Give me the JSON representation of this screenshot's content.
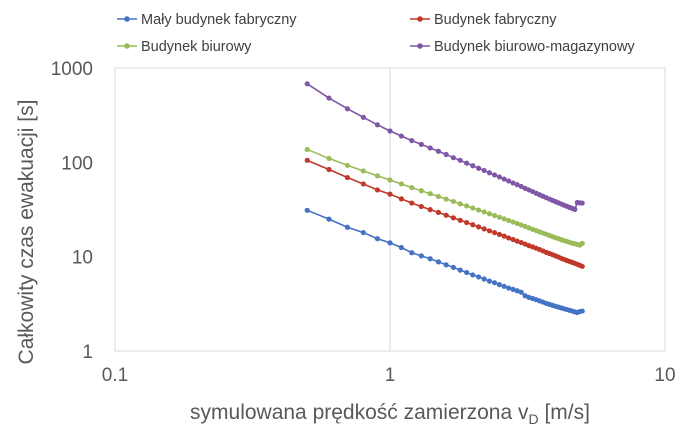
{
  "chart_data": {
    "type": "line",
    "title": "",
    "xlabel": "symulowana prędkość zamierzona v",
    "xlabel_subscript": "D",
    "xlabel_unit": " [m/s]",
    "ylabel": "Całkowity czas ewakuacji [s]",
    "x_scale": "log",
    "y_scale": "log",
    "xlim": [
      0.1,
      10
    ],
    "ylim": [
      1,
      1000
    ],
    "x_ticks": [
      "0.1",
      "1",
      "10"
    ],
    "y_ticks": [
      "1",
      "10",
      "100",
      "1000"
    ],
    "grid": "vertical major",
    "legend_position": "top",
    "x": [
      0.5,
      0.6,
      0.7,
      0.8,
      0.9,
      1.0,
      1.1,
      1.2,
      1.3,
      1.4,
      1.5,
      1.6,
      1.7,
      1.8,
      1.9,
      2.0,
      2.1,
      2.2,
      2.3,
      2.4,
      2.5,
      2.6,
      2.7,
      2.8,
      2.9,
      3.0,
      3.1,
      3.2,
      3.3,
      3.4,
      3.5,
      3.6,
      3.7,
      3.8,
      3.9,
      4.0,
      4.1,
      4.2,
      4.3,
      4.4,
      4.5,
      4.6,
      4.7,
      4.8,
      4.9,
      5.0
    ],
    "series": [
      {
        "name": "Mały budynek fabryczny",
        "color": "#4472C4",
        "values": [
          31,
          25,
          20.5,
          18,
          15.5,
          14,
          12.5,
          11,
          10.2,
          9.5,
          8.8,
          8.2,
          7.7,
          7.2,
          6.8,
          6.4,
          6.1,
          5.8,
          5.5,
          5.3,
          5.05,
          4.85,
          4.65,
          4.5,
          4.35,
          4.2,
          3.85,
          3.7,
          3.6,
          3.5,
          3.4,
          3.3,
          3.2,
          3.12,
          3.05,
          2.98,
          2.92,
          2.86,
          2.8,
          2.75,
          2.7,
          2.65,
          2.6,
          2.56,
          2.62,
          2.65
        ]
      },
      {
        "name": "Budynek fabryczny",
        "color": "#C0392B",
        "values": [
          105,
          84,
          69,
          59,
          51,
          46,
          41,
          37,
          34,
          31.5,
          29.5,
          27.5,
          25.8,
          24.3,
          23,
          21.8,
          20.7,
          19.7,
          18.8,
          18,
          17.2,
          16.5,
          15.8,
          15.2,
          14.6,
          14.1,
          13.6,
          13.1,
          12.7,
          12.3,
          11.9,
          11.5,
          11.1,
          10.8,
          10.5,
          10.2,
          9.9,
          9.6,
          9.35,
          9.1,
          8.9,
          8.7,
          8.5,
          8.3,
          8.1,
          7.9
        ]
      },
      {
        "name": "Budynek biurowy",
        "color": "#9BBB59",
        "values": [
          137,
          110,
          93,
          81,
          72,
          65,
          59,
          54,
          50,
          46.5,
          43.5,
          40.8,
          38.5,
          36.3,
          34.5,
          32.8,
          31.2,
          29.8,
          28.5,
          27.3,
          26.2,
          25.2,
          24.2,
          23.3,
          22.5,
          21.7,
          20.9,
          20.2,
          19.5,
          18.9,
          18.3,
          17.8,
          17.3,
          16.8,
          16.3,
          15.9,
          15.5,
          15.1,
          14.8,
          14.5,
          14.2,
          13.9,
          13.7,
          13.5,
          13.3,
          13.8
        ]
      },
      {
        "name": "Budynek biurowo-magazynowy",
        "color": "#7E57A6",
        "values": [
          680,
          480,
          370,
          300,
          250,
          215,
          190,
          170,
          155,
          142,
          131,
          121,
          112,
          105,
          98,
          92,
          86.5,
          82,
          77.5,
          73.5,
          70,
          66.5,
          63.5,
          60.5,
          58,
          55.5,
          53,
          51,
          49,
          47,
          45.3,
          43.7,
          42.2,
          40.8,
          39.5,
          38.3,
          37.2,
          36.1,
          35.1,
          34.2,
          33.3,
          32.5,
          31.7,
          37.5,
          37.2,
          37
        ]
      }
    ]
  }
}
